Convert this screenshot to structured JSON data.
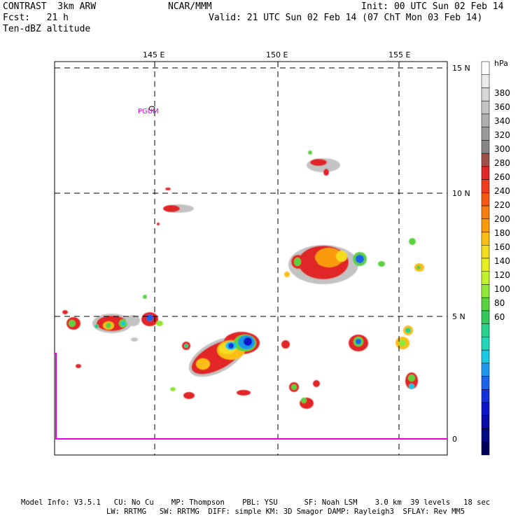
{
  "header": {
    "line1_left": "CONTRAST  3km ARW",
    "line1_center": "NCAR/MMM",
    "line1_right": "Init: 00 UTC Sun 02 Feb 14",
    "line2_left": "Fcst:   21 h",
    "line2_right": "Valid: 21 UTC Sun 02 Feb 14 (07 ChT Mon 03 Feb 14)",
    "line3_left": "Ten-dBZ altitude"
  },
  "map": {
    "lon_labels": [
      "145 E",
      "150 E",
      "155 E"
    ],
    "lat_labels": [
      "15 N",
      "10 N",
      "5 N"
    ],
    "station_label": "PGUM",
    "right_axis_bottom_label": "0",
    "section_values": [
      0,
      3.5
    ]
  },
  "colorbar": {
    "unit": "hPa",
    "labels": [
      "380",
      "360",
      "340",
      "320",
      "300",
      "280",
      "260",
      "240",
      "220",
      "200",
      "180",
      "160",
      "140",
      "120",
      "100",
      "80",
      "60"
    ],
    "colors": [
      "#ffffff",
      "#ebebeb",
      "#d7d7d7",
      "#c3c3c3",
      "#afafaf",
      "#9b9b9b",
      "#878787",
      "#a0504b",
      "#e02828",
      "#f03c1e",
      "#f55a14",
      "#f57d0f",
      "#fa9b0a",
      "#fabe14",
      "#f5dc1e",
      "#e6f01e",
      "#c3f02d",
      "#91e637",
      "#5ad241",
      "#32c85a",
      "#28d28c",
      "#23d7b9",
      "#19c8e1",
      "#1e96eb",
      "#1e64eb",
      "#1432dc",
      "#0a14c8",
      "#0a0aa5",
      "#000a82",
      "#00005a"
    ]
  },
  "footer": {
    "line1": "Model Info: V3.5.1   CU: No Cu    MP: Thompson    PBL: YSU      SF: Noah LSM    3.0 km  39 levels   18 sec",
    "line2": "LW: RRTMG   SW: RRTMG  DIFF: simple KM: 3D Smagor DAMP: Rayleigh3  SFLAY: Rev MM5"
  }
}
